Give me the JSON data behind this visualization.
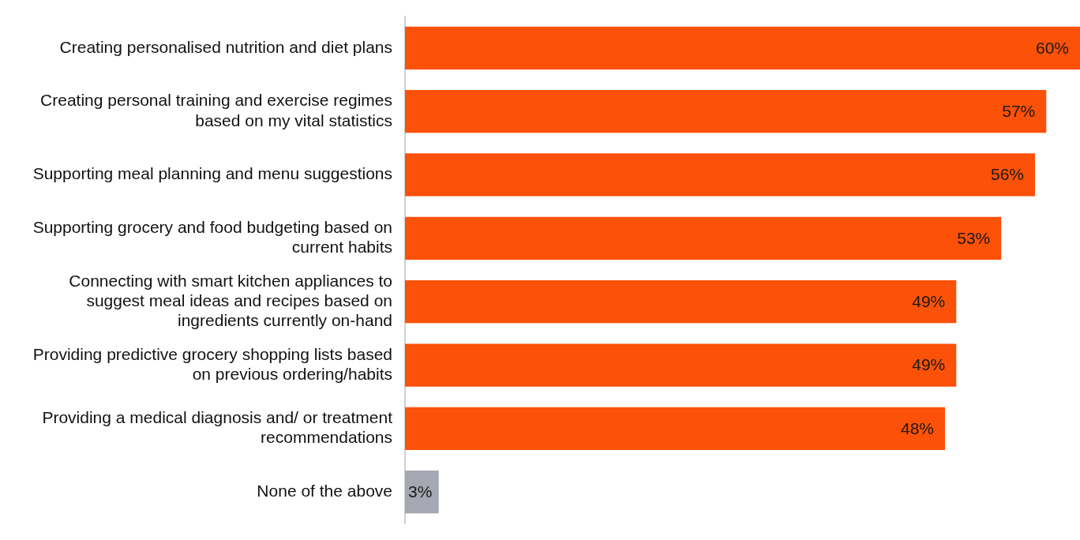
{
  "chart_data": {
    "type": "bar",
    "orientation": "horizontal",
    "categories": [
      "Creating personalised nutrition and diet plans",
      "Creating personal training and exercise regimes based on my vital statistics",
      "Supporting meal planning and menu suggestions",
      "Supporting grocery and food budgeting based on current habits",
      "Connecting with smart kitchen appliances to suggest meal ideas and recipes based on ingredients currently on-hand",
      "Providing predictive grocery shopping lists based on previous ordering/habits",
      "Providing a medical diagnosis and/ or treatment recommendations",
      "None of the above"
    ],
    "values": [
      60,
      57,
      56,
      53,
      49,
      49,
      48,
      3
    ],
    "value_labels": [
      "60%",
      "57%",
      "56%",
      "53%",
      "49%",
      "49%",
      "48%",
      "3%"
    ],
    "colors": [
      "#fc5108",
      "#fc5108",
      "#fc5108",
      "#fc5108",
      "#fc5108",
      "#fc5108",
      "#fc5108",
      "#a5a8b2"
    ],
    "data_labels": true
  }
}
